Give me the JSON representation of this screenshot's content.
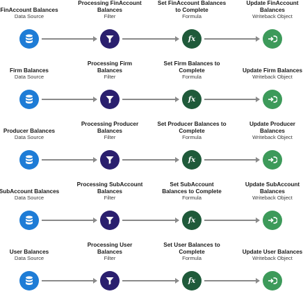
{
  "colors": {
    "datasource": "#1e7cd6",
    "filter": "#2a1f6e",
    "formula": "#1f5a3a",
    "writeback": "#3d9a5a",
    "connector": "#8a8a8a"
  },
  "rows": [
    {
      "nodes": [
        {
          "title": "FinAccount Balances",
          "type": "Data Source",
          "icon": "database-icon"
        },
        {
          "title": "Processing FinAccount Balances",
          "type": "Filter",
          "icon": "filter-icon"
        },
        {
          "title": "Set FinAccount Balances to Complete",
          "type": "Formula",
          "icon": "fx-icon"
        },
        {
          "title": "Update FinAccount Balances",
          "type": "Writeback Object",
          "icon": "writeback-icon"
        }
      ]
    },
    {
      "nodes": [
        {
          "title": "Firm Balances",
          "type": "Data Source",
          "icon": "database-icon"
        },
        {
          "title": "Processing Firm Balances",
          "type": "Filter",
          "icon": "filter-icon"
        },
        {
          "title": "Set Firm Balances to Complete",
          "type": "Formula",
          "icon": "fx-icon"
        },
        {
          "title": "Update Firm Balances",
          "type": "Writeback Object",
          "icon": "writeback-icon"
        }
      ]
    },
    {
      "nodes": [
        {
          "title": "Producer Balances",
          "type": "Data Source",
          "icon": "database-icon"
        },
        {
          "title": "Processing Producer Balances",
          "type": "Filter",
          "icon": "filter-icon"
        },
        {
          "title": "Set Producer Balances to Complete",
          "type": "Formula",
          "icon": "fx-icon"
        },
        {
          "title": "Update Producer Balances",
          "type": "Writeback Object",
          "icon": "writeback-icon"
        }
      ]
    },
    {
      "nodes": [
        {
          "title": "SubAccount Balances",
          "type": "Data Source",
          "icon": "database-icon"
        },
        {
          "title": "Processing SubAccount Balances",
          "type": "Filter",
          "icon": "filter-icon"
        },
        {
          "title": "Set SubAccount Balances to Complete",
          "type": "Formula",
          "icon": "fx-icon"
        },
        {
          "title": "Update SubAccount Balances",
          "type": "Writeback Object",
          "icon": "writeback-icon"
        }
      ]
    },
    {
      "nodes": [
        {
          "title": "User Balances",
          "type": "Data Source",
          "icon": "database-icon"
        },
        {
          "title": "Processing User Balances",
          "type": "Filter",
          "icon": "filter-icon"
        },
        {
          "title": "Set User Balances to Complete",
          "type": "Formula",
          "icon": "fx-icon"
        },
        {
          "title": "Update User Balances",
          "type": "Writeback Object",
          "icon": "writeback-icon"
        }
      ]
    }
  ]
}
